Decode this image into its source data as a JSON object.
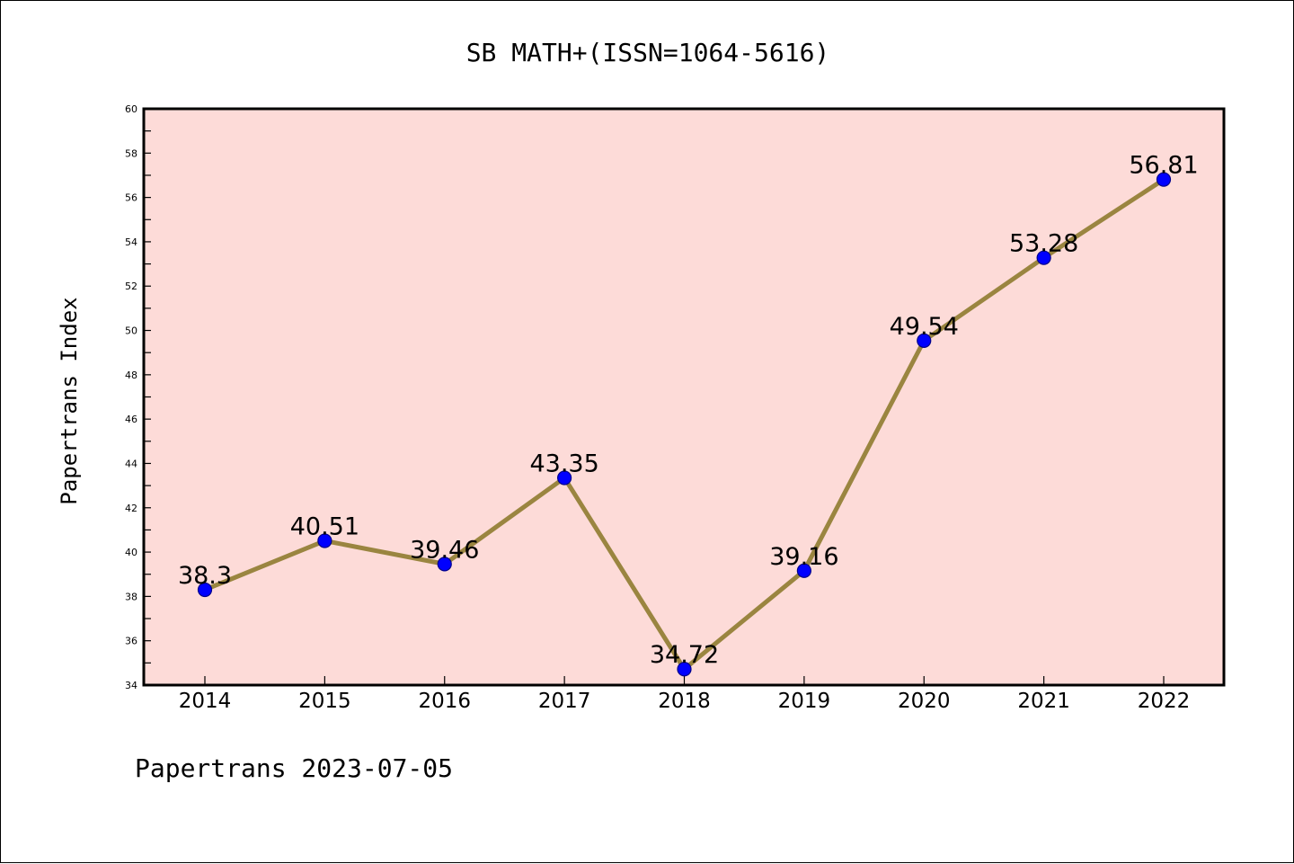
{
  "chart_data": {
    "type": "line",
    "title": "SB MATH+(ISSN=1064-5616)",
    "ylabel": "Papertrans Index",
    "xlabel": "",
    "footer": "Papertrans 2023-07-05",
    "categories": [
      "2014",
      "2015",
      "2016",
      "2017",
      "2018",
      "2019",
      "2020",
      "2021",
      "2022"
    ],
    "values": [
      38.3,
      40.51,
      39.46,
      43.35,
      34.72,
      39.16,
      49.54,
      53.28,
      56.81
    ],
    "data_labels": [
      "38.3",
      "40.51",
      "39.46",
      "43.35",
      "34.72",
      "39.16",
      "49.54",
      "53.28",
      "56.81"
    ],
    "ylim": [
      34,
      60
    ],
    "yticks": [
      34,
      36,
      38,
      40,
      42,
      44,
      46,
      48,
      50,
      52,
      54,
      56,
      58,
      60
    ],
    "ytick_labels": [
      "34",
      "36",
      "38",
      "40",
      "42",
      "44",
      "46",
      "48",
      "50",
      "52",
      "54",
      "56",
      "58",
      "60"
    ],
    "grid": false,
    "colors": {
      "plot_background": "#fddbd8",
      "line": "#9a8540",
      "marker": "#0000ff",
      "axes": "#000000"
    }
  }
}
